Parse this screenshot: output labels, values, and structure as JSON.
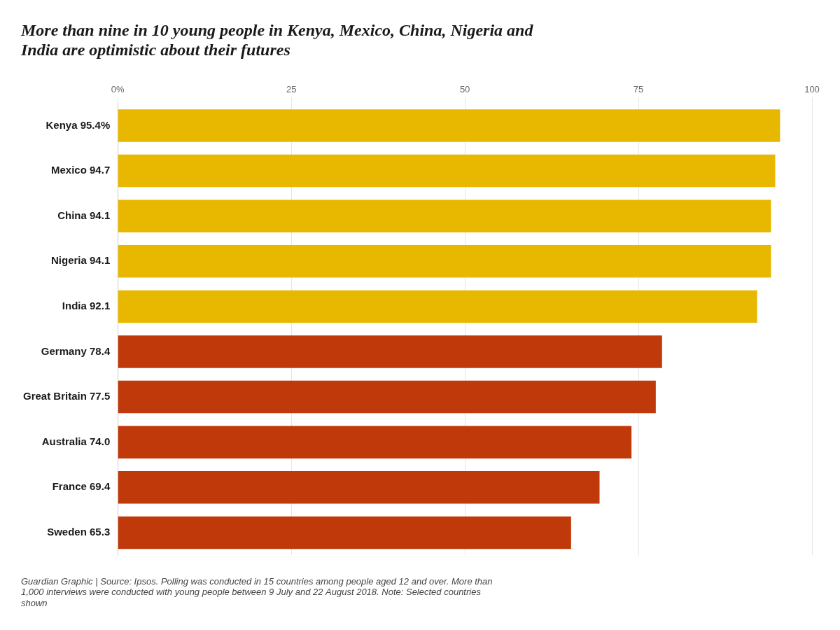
{
  "chart_data": {
    "type": "bar",
    "orientation": "horizontal",
    "title": [
      "More than nine in 10 young people in Kenya, Mexico, China, Nigeria and",
      "India are optimistic about their futures"
    ],
    "annotations": [
      "Guardian Graphic | Source: Ipsos. Polling was conducted in 15 countries among people aged 12 and over. More than\n1,000 interviews were conducted with young people between 9 July and 22 August 2018. Note: Selected countries\nshown"
    ],
    "categories": [
      "Kenya 95.4%",
      "Mexico 94.7",
      "China 94.1",
      "Nigeria 94.1",
      "India 92.1",
      "Germany 78.4",
      "Great Britain 77.5",
      "Australia 74.0",
      "France 69.4",
      "Sweden 65.3"
    ],
    "values": [
      95.4,
      94.7,
      94.1,
      94.1,
      92.1,
      78.4,
      77.5,
      74.0,
      69.4,
      65.3
    ],
    "colors": [
      "#E8B800",
      "#E8B800",
      "#E8B800",
      "#E8B800",
      "#E8B800",
      "#C0390B",
      "#C0390B",
      "#C0390B",
      "#C0390B",
      "#C0390B"
    ],
    "xlim": [
      0,
      100
    ],
    "xticks": [
      {
        "value": 0,
        "label": "0%"
      },
      25,
      50,
      75,
      100
    ],
    "grid": true
  }
}
